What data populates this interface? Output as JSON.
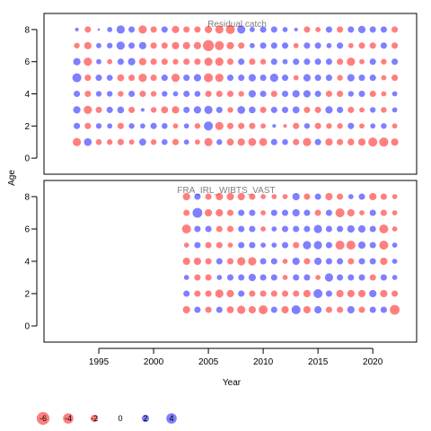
{
  "chart_data": {
    "type": "scatter",
    "subtype": "bubble",
    "xlabel": "Year",
    "ylabel": "Age",
    "xlim": [
      1990,
      2024
    ],
    "ylim": [
      -1,
      9
    ],
    "xticks": [
      1995,
      2000,
      2005,
      2010,
      2015,
      2020
    ],
    "yticks": [
      0,
      2,
      4,
      6,
      8
    ],
    "grid": false,
    "colors": {
      "negative": "#ff0000",
      "positive": "#0000ff"
    },
    "ages": [
      1,
      2,
      3,
      4,
      5,
      6,
      7,
      8
    ],
    "panels": [
      {
        "title": "Residual catch",
        "years": [
          1993,
          1994,
          1995,
          1996,
          1997,
          1998,
          1999,
          2000,
          2001,
          2002,
          2003,
          2004,
          2005,
          2006,
          2007,
          2008,
          2009,
          2010,
          2011,
          2012,
          2013,
          2014,
          2015,
          2016,
          2017,
          2018,
          2019,
          2020,
          2021,
          2022
        ],
        "residuals": [
          [
            -2.5,
            2.2,
            -1.3,
            -1.2,
            -1.5,
            -1.0,
            1.8,
            -1.2,
            1.3,
            -1.5,
            1.0,
            -1.0,
            -2.5,
            1.2,
            -1.8,
            -2.0,
            -2.3,
            -2.3,
            1.5,
            1.3,
            -1.5,
            -2.5,
            1.5,
            -2.0,
            -1.5,
            -1.7,
            -2.0,
            -3.0,
            -3.1,
            -2.0
          ],
          [
            1.5,
            -1.5,
            1.2,
            1.0,
            -1.5,
            1.2,
            1.0,
            1.5,
            1.3,
            -1.0,
            1.0,
            -1.2,
            3.0,
            -2.5,
            -1.5,
            -1.5,
            -1.5,
            -1.0,
            0.5,
            -0.5,
            -1.5,
            1.2,
            -1.5,
            -1.2,
            -1.2,
            1.5,
            -1.0,
            1.0,
            1.2,
            -1.0
          ],
          [
            2.0,
            -2.5,
            -1.5,
            1.5,
            1.7,
            -1.5,
            0.5,
            -1.2,
            -1.8,
            -2.0,
            1.5,
            2.0,
            2.5,
            1.5,
            -1.2,
            2.2,
            1.7,
            -1.5,
            1.5,
            1.5,
            1.8,
            -1.5,
            -1.5,
            2.0,
            1.5,
            -1.5,
            -1.0,
            1.2,
            -1.2,
            1.0
          ],
          [
            1.5,
            -1.5,
            1.2,
            1.2,
            -1.2,
            1.5,
            -1.5,
            -1.2,
            1.2,
            1.0,
            1.5,
            1.3,
            -1.5,
            -1.5,
            -1.5,
            -1.2,
            2.0,
            1.5,
            -1.5,
            1.5,
            2.0,
            2.0,
            1.5,
            -1.5,
            -1.5,
            1.2,
            1.5,
            -1.5,
            -1.0,
            1.0
          ],
          [
            3.0,
            -1.5,
            1.5,
            1.3,
            -1.8,
            -1.5,
            -2.5,
            -1.5,
            1.5,
            -2.5,
            1.5,
            2.0,
            -3.0,
            -2.5,
            1.5,
            1.5,
            2.0,
            1.5,
            2.5,
            1.5,
            -1.0,
            2.0,
            1.5,
            1.5,
            -1.2,
            2.0,
            1.5,
            1.5,
            -1.0,
            -1.5
          ],
          [
            2.0,
            -2.5,
            1.0,
            -1.0,
            1.5,
            2.0,
            -2.0,
            -1.5,
            -1.5,
            -1.2,
            -1.5,
            -1.5,
            -2.5,
            -2.5,
            -1.5,
            1.5,
            -1.5,
            -1.2,
            1.5,
            1.0,
            1.5,
            1.5,
            1.5,
            1.5,
            -1.5,
            -2.5,
            -1.0,
            1.5,
            -1.2,
            1.5
          ],
          [
            -1.2,
            -2.0,
            1.0,
            1.2,
            2.5,
            1.5,
            2.0,
            -1.5,
            -1.5,
            -2.0,
            -2.0,
            -2.0,
            -4.5,
            -3.0,
            -2.0,
            -1.5,
            1.0,
            1.5,
            1.5,
            1.5,
            -1.0,
            1.5,
            1.5,
            1.0,
            1.5,
            -1.0,
            -1.5,
            -1.5,
            1.5,
            -1.5
          ],
          [
            0.5,
            -1.5,
            0.2,
            1.0,
            2.5,
            1.5,
            -2.5,
            -1.5,
            1.5,
            -2.0,
            -1.5,
            -1.5,
            -2.0,
            -2.5,
            -3.0,
            2.5,
            1.0,
            1.5,
            1.5,
            1.0,
            0.5,
            -1.5,
            -1.0,
            1.5,
            -1.5,
            1.5,
            2.0,
            1.5,
            1.5,
            -1.5
          ]
        ]
      },
      {
        "title": "FRA_IRL_WIBTS_VAST",
        "years": [
          2003,
          2004,
          2005,
          2006,
          2007,
          2008,
          2009,
          2010,
          2011,
          2012,
          2013,
          2014,
          2015,
          2016,
          2017,
          2018,
          2019,
          2020,
          2021,
          2022
        ],
        "residuals": [
          [
            -2.0,
            1.5,
            -1.5,
            1.5,
            -1.8,
            -2.5,
            -2.0,
            -3.0,
            1.5,
            -2.0,
            3.0,
            -2.0,
            2.0,
            -1.5,
            -1.5,
            2.0,
            -1.5,
            1.5,
            1.5,
            -3.5
          ],
          [
            1.5,
            -1.5,
            -1.5,
            -2.5,
            -2.0,
            1.5,
            -1.5,
            -1.5,
            -1.5,
            -1.5,
            -1.5,
            -2.0,
            3.0,
            1.5,
            -2.0,
            -2.0,
            -2.0,
            2.0,
            -2.0,
            -1.5
          ],
          [
            1.0,
            -1.5,
            -1.5,
            1.0,
            1.5,
            1.5,
            2.0,
            1.5,
            1.5,
            -1.0,
            1.5,
            1.5,
            -1.0,
            2.5,
            1.5,
            1.5,
            1.5,
            -1.5,
            1.5,
            1.0
          ],
          [
            -2.0,
            -2.0,
            -1.5,
            1.5,
            -1.5,
            -2.5,
            -2.5,
            1.5,
            1.5,
            -1.0,
            2.0,
            -1.5,
            2.0,
            1.5,
            1.5,
            -1.5,
            1.5,
            1.5,
            -2.0,
            1.0
          ],
          [
            -1.0,
            1.5,
            -1.5,
            -1.5,
            -1.0,
            1.5,
            1.5,
            1.0,
            1.0,
            1.5,
            -1.5,
            2.5,
            2.5,
            1.5,
            -3.0,
            -3.0,
            2.0,
            1.5,
            -3.0,
            1.0
          ],
          [
            -3.0,
            1.5,
            1.5,
            -1.5,
            -1.5,
            1.5,
            1.5,
            -1.0,
            1.0,
            1.5,
            1.5,
            1.5,
            2.5,
            1.5,
            1.5,
            2.0,
            2.0,
            1.5,
            -3.0,
            -1.0
          ],
          [
            -1.5,
            3.5,
            -2.0,
            -2.0,
            -1.5,
            1.5,
            1.5,
            -1.0,
            1.5,
            1.5,
            2.0,
            1.5,
            -1.5,
            1.5,
            -3.0,
            -2.0,
            -1.0,
            1.5,
            -1.5,
            -1.0
          ],
          [
            -2.0,
            1.5,
            -1.5,
            -2.0,
            -2.0,
            -2.0,
            -1.5,
            -1.0,
            -1.0,
            -1.0,
            2.0,
            -1.5,
            1.5,
            -2.0,
            -1.5,
            1.0,
            1.5,
            -2.0,
            -1.5,
            -1.0
          ]
        ]
      }
    ],
    "legend": {
      "values": [
        -6,
        -4,
        -2,
        0,
        2,
        4
      ]
    }
  }
}
